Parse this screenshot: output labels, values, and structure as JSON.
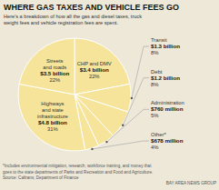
{
  "chart_data": {
    "type": "pie",
    "title": "WHERE GAS TAXES AND VEHICLE FEES GO",
    "subtitle": "Here’s a breakdown of how all the gas and diesel taxes, truck\nweight fees and vehicle registration fees are spent.",
    "categories": [
      "CHP and DMV",
      "Transit",
      "Debt",
      "Administration",
      "Other*",
      "Highways\nand state\ninfrastructure",
      "Streets\nand roads"
    ],
    "values": [
      22,
      8,
      8,
      5,
      4,
      31,
      22
    ],
    "value_labels": [
      "22%",
      "8%",
      "8%",
      "5%",
      "4%",
      "31%",
      "22%"
    ],
    "amounts": [
      "$3.4 billion",
      "$1.3 billion",
      "$1.2 billion",
      "$760 million",
      "$678 million",
      "$4.8 billion",
      "$3.5 billion"
    ],
    "color": "#f5e499",
    "data_labels": true,
    "footnote": "*Includes environmental mitigation, research, workforce training, and money that\ngoes to the state departments of Parks and Recreation and Food and Agriculture.\nSource: Caltrans, Department of Finance",
    "source": "BAY AREA NEWS GROUP"
  }
}
